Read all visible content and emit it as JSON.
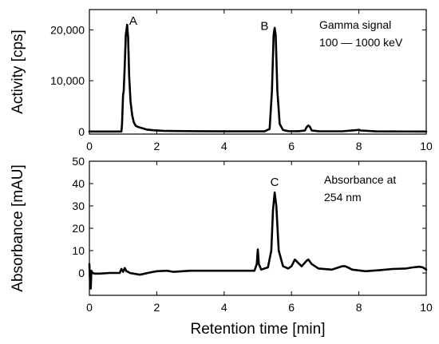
{
  "chart_data": [
    {
      "type": "line",
      "ylabel": "Activity [cps]",
      "xlim": [
        0,
        10
      ],
      "ylim": [
        -500,
        24000
      ],
      "xticks": [
        0,
        2,
        4,
        6,
        8,
        10
      ],
      "yticks": [
        0,
        10000,
        20000
      ],
      "ytick_labels": [
        "0",
        "10,000",
        "20,000"
      ],
      "annotation_lines": [
        "Gamma signal",
        "100 — 1000 keV"
      ],
      "peak_labels": [
        {
          "label": "A",
          "x": 1.3,
          "y": 21000
        },
        {
          "label": "B",
          "x": 5.2,
          "y": 20000
        }
      ],
      "series": [
        {
          "x": [
            0,
            0.95,
            0.97,
            1.0,
            1.02,
            1.05,
            1.08,
            1.12,
            1.15,
            1.18,
            1.22,
            1.27,
            1.32,
            1.38,
            1.45,
            1.55,
            1.7,
            1.9,
            2.2,
            2.6,
            3.2,
            4.0,
            4.8,
            5.2,
            5.35,
            5.42,
            5.47,
            5.5,
            5.53,
            5.58,
            5.65,
            5.75,
            5.9,
            6.2,
            6.4,
            6.45,
            6.5,
            6.55,
            6.6,
            6.8,
            7.5,
            7.95,
            8.0,
            8.05,
            8.5,
            9.0,
            10.0
          ],
          "y": [
            0,
            0,
            1500,
            7200,
            8000,
            13000,
            19000,
            21000,
            18500,
            11000,
            6000,
            3200,
            1800,
            1100,
            900,
            700,
            400,
            250,
            150,
            100,
            60,
            40,
            30,
            30,
            500,
            8000,
            19000,
            20400,
            19000,
            8000,
            1500,
            300,
            80,
            60,
            200,
            900,
            1200,
            900,
            200,
            60,
            50,
            300,
            350,
            200,
            40,
            20,
            0
          ]
        }
      ]
    },
    {
      "type": "line",
      "ylabel": "Absorbance [mAU]",
      "xlabel": "Retention time [min]",
      "xlim": [
        0,
        10
      ],
      "ylim": [
        -10,
        50
      ],
      "xticks": [
        0,
        2,
        4,
        6,
        8,
        10
      ],
      "yticks": [
        0,
        10,
        20,
        30,
        40,
        50
      ],
      "annotation_lines": [
        "Absorbance at",
        "254 nm"
      ],
      "peak_labels": [
        {
          "label": "C",
          "x": 5.5,
          "y": 39
        }
      ],
      "series": [
        {
          "x": [
            0,
            0.02,
            0.04,
            0.06,
            0.08,
            0.1,
            0.15,
            0.3,
            0.6,
            0.9,
            0.95,
            1.0,
            1.05,
            1.1,
            1.15,
            1.2,
            1.5,
            1.8,
            2.0,
            2.3,
            2.5,
            3.0,
            3.5,
            4.0,
            4.5,
            4.9,
            4.97,
            5.0,
            5.03,
            5.1,
            5.3,
            5.4,
            5.45,
            5.5,
            5.55,
            5.62,
            5.75,
            5.9,
            6.0,
            6.1,
            6.2,
            6.3,
            6.45,
            6.5,
            6.6,
            6.8,
            7.2,
            7.5,
            7.6,
            7.8,
            8.2,
            8.6,
            9.0,
            9.4,
            9.6,
            9.8,
            9.9,
            10.0
          ],
          "y": [
            4,
            -4,
            -7,
            1,
            0.3,
            0,
            -0.3,
            -0.3,
            0,
            0,
            1.8,
            0.5,
            2.2,
            0.8,
            0.5,
            0,
            -0.8,
            0.2,
            0.8,
            1.0,
            0.5,
            1.0,
            1.0,
            1.0,
            1.0,
            1.0,
            4.0,
            10.5,
            4.0,
            1.5,
            2.5,
            10,
            28,
            36,
            30,
            10,
            3,
            2,
            3,
            6,
            4.5,
            3,
            5.5,
            6,
            4,
            2,
            1.5,
            3,
            3,
            1.5,
            0.8,
            1.2,
            1.8,
            2,
            2.5,
            2.8,
            2.5,
            1.5
          ]
        }
      ]
    }
  ]
}
